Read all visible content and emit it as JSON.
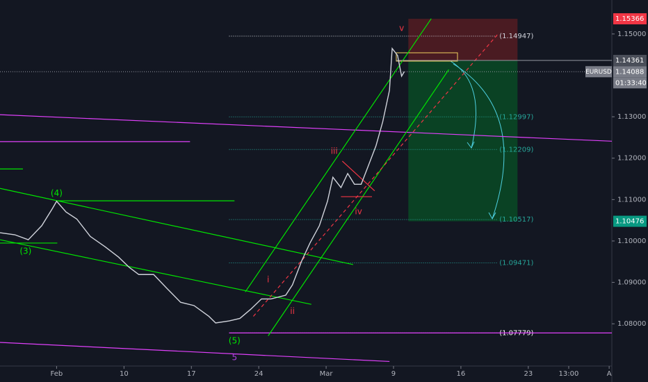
{
  "chart_data": {
    "type": "line",
    "symbol": "EURUSD",
    "x": [
      -4.2,
      -3.1,
      -2.1,
      -1.1,
      -0.3,
      0,
      0.7,
      1.5,
      2.5,
      3.6,
      4.6,
      5.4,
      6.1,
      7.2,
      8.2,
      9.2,
      10.2,
      11.3,
      11.8,
      12.8,
      13.6,
      14.4,
      15.2,
      15.9,
      17.0,
      17.5,
      18.2,
      18.8,
      19.5,
      20.1,
      20.5,
      21.1,
      21.6,
      22.1,
      22.6,
      23.1,
      23.7,
      24.2,
      24.7,
      24.9,
      25.3,
      25.6,
      25.8
    ],
    "series": [
      {
        "color": "#d1d4dc",
        "values": [
          1.102,
          1.1015,
          1.1003,
          1.1037,
          1.1079,
          1.1096,
          1.107,
          1.1053,
          1.1011,
          1.0986,
          1.0961,
          1.0936,
          1.0919,
          1.0919,
          1.0885,
          1.0852,
          1.0844,
          1.0818,
          1.0802,
          1.0807,
          1.0813,
          1.0835,
          1.086,
          1.086,
          1.0869,
          1.0894,
          1.0953,
          1.0995,
          1.1037,
          1.1096,
          1.1154,
          1.1129,
          1.1163,
          1.1137,
          1.1137,
          1.1179,
          1.123,
          1.1288,
          1.1364,
          1.1465,
          1.1448,
          1.1398,
          1.1409
        ]
      }
    ],
    "xlim": [
      -4.2,
      41.2
    ],
    "xticks": [
      {
        "value": 0,
        "label": "Feb"
      },
      {
        "value": 5,
        "label": "10"
      },
      {
        "value": 10,
        "label": "17"
      },
      {
        "value": 15,
        "label": "24"
      },
      {
        "value": 20,
        "label": "Mar"
      },
      {
        "value": 25,
        "label": "9"
      },
      {
        "value": 30,
        "label": "16"
      },
      {
        "value": 35,
        "label": "23"
      },
      {
        "value": 38,
        "label": "13:00"
      },
      {
        "value": 41,
        "label": "A"
      }
    ],
    "ylim": [
      1.0698,
      1.1582
    ],
    "yticks": [
      {
        "value": 1.08,
        "label": "1.08000"
      },
      {
        "value": 1.09,
        "label": "1.09000"
      },
      {
        "value": 1.1,
        "label": "1.10000"
      },
      {
        "value": 1.11,
        "label": "1.11000"
      },
      {
        "value": 1.12,
        "label": "1.12000"
      },
      {
        "value": 1.13,
        "label": "1.13000"
      },
      {
        "value": 1.15,
        "label": "1.15000"
      }
    ],
    "price_tags": [
      {
        "value": 1.15366,
        "color": "#f23645"
      },
      {
        "value": 1.14361,
        "color": "#4a4e59"
      },
      {
        "value": 1.14088,
        "color": "#787b86",
        "countdown": "01:33:40"
      },
      {
        "value": 1.10476,
        "color": "#089981"
      }
    ],
    "position": {
      "x": [
        26.1,
        34.2
      ],
      "stop": 1.15366,
      "entry": 1.14361,
      "target": 1.10476
    },
    "levels": [
      {
        "value": 1.14947,
        "label": "(1.14947)",
        "color": "#d1d4dc"
      },
      {
        "value": 1.12997,
        "label": "(1.12997)",
        "color": "#26a69a"
      },
      {
        "value": 1.12209,
        "label": "(1.12209)",
        "color": "#26a69a"
      },
      {
        "value": 1.10517,
        "label": "(1.10517)",
        "color": "#26a69a"
      },
      {
        "value": 1.09471,
        "label": "(1.09471)",
        "color": "#26a69a"
      },
      {
        "value": 1.07779,
        "label": "(1.07779)",
        "color": "#ffffff"
      }
    ],
    "level_x": [
      12.8,
      32.7
    ],
    "trendlines": [
      {
        "x": [
          -4.2,
          41.2
        ],
        "y": [
          1.1305,
          1.1241
        ],
        "color": "#e040fb"
      },
      {
        "x": [
          -4.2,
          9.9
        ],
        "y": [
          1.124,
          1.124
        ],
        "color": "#e040fb"
      },
      {
        "x": [
          -4.2,
          24.7
        ],
        "y": [
          1.0755,
          1.0709
        ],
        "color": "#e040fb"
      },
      {
        "x": [
          12.8,
          41.2
        ],
        "y": [
          1.07779,
          1.07779
        ],
        "color": "#e040fb"
      },
      {
        "x": [
          -4.2,
          -2.5
        ],
        "y": [
          1.1174,
          1.1174
        ],
        "color": "#00e600"
      },
      {
        "x": [
          0,
          13.2
        ],
        "y": [
          1.1097,
          1.1097
        ],
        "color": "#00e600"
      },
      {
        "x": [
          -4.2,
          0.05
        ],
        "y": [
          1.0995,
          1.0995
        ],
        "color": "#00e600"
      },
      {
        "x": [
          -4.2,
          22.0
        ],
        "y": [
          1.1127,
          1.0943
        ],
        "color": "#00e600"
      },
      {
        "x": [
          -4.2,
          18.9
        ],
        "y": [
          1.1003,
          1.0847
        ],
        "color": "#00e600"
      },
      {
        "x": [
          14.0,
          27.8
        ],
        "y": [
          1.0877,
          1.1537
        ],
        "color": "#00e600"
      },
      {
        "x": [
          15.7,
          29.1
        ],
        "y": [
          1.0771,
          1.1414
        ],
        "color": "#00e600"
      },
      {
        "x": [
          14.6,
          32.7
        ],
        "y": [
          1.0818,
          1.1498
        ],
        "color": "#f23645",
        "dashed": true
      },
      {
        "x": [
          21.2,
          23.6
        ],
        "y": [
          1.1193,
          1.1121
        ],
        "color": "#f23645"
      },
      {
        "x": [
          21.1,
          23.4
        ],
        "y": [
          1.1107,
          1.1107
        ],
        "color": "#f23645"
      }
    ],
    "waves": [
      {
        "label": "(3)",
        "x": -2.3,
        "y": 1.0975,
        "color": "#00e600"
      },
      {
        "label": "(4)",
        "x": 0,
        "y": 1.1115,
        "color": "#00e600"
      },
      {
        "label": "(5)",
        "x": 13.2,
        "y": 1.0758,
        "color": "#00e600"
      },
      {
        "label": "i",
        "x": 15.7,
        "y": 1.0906,
        "color": "#f23645"
      },
      {
        "label": "ii",
        "x": 17.5,
        "y": 1.083,
        "color": "#f23645"
      },
      {
        "label": "iii",
        "x": 20.6,
        "y": 1.1216,
        "color": "#f23645"
      },
      {
        "label": "iv",
        "x": 22.4,
        "y": 1.107,
        "color": "#f23645"
      },
      {
        "label": "v",
        "x": 25.6,
        "y": 1.1513,
        "color": "#f23645"
      },
      {
        "label": "5",
        "x": 13.2,
        "y": 1.0718,
        "color": "#b040e0"
      }
    ]
  }
}
